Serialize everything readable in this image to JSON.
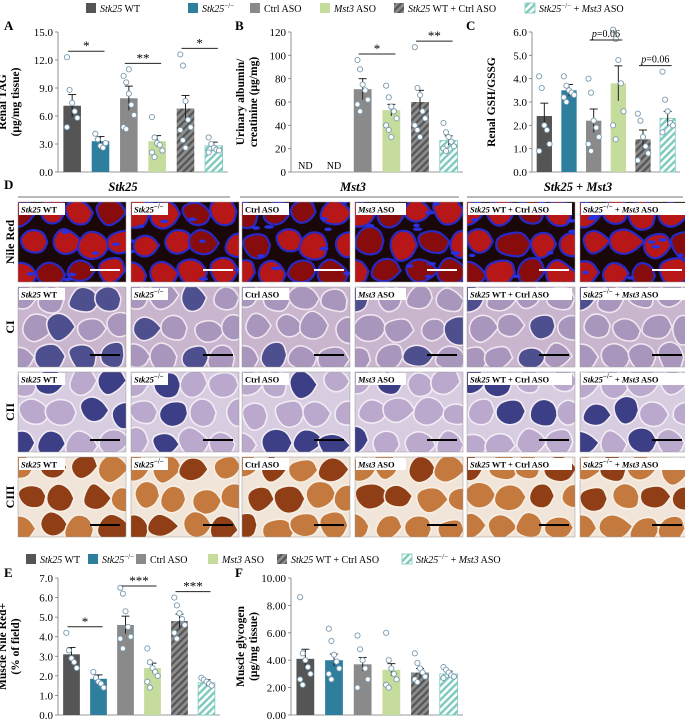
{
  "colors": {
    "stk25_wt": "#555555",
    "stk25_ko": "#2E7F9E",
    "ctrl_aso": "#8A8A8A",
    "mst3_aso": "#C6DC9C",
    "combo_ctrl": "#666666",
    "combo_mst3": "#8FD1C6",
    "nile_red": "#C01818",
    "nile_bg": "#1A0808",
    "ci_bg": "#C9B6CE",
    "ci_fiber_dark": "#4E4F8E",
    "ci_fiber_light": "#A996BC",
    "cii_bg": "#D7CCE0",
    "cii_fiber_dark": "#3C3F86",
    "cii_fiber_light": "#BBA9CD",
    "ciii_bg": "#F0E5D8",
    "ciii_fiber_dark": "#8F3E16",
    "ciii_fiber_light": "#C47A3E"
  },
  "legend_top": {
    "items": [
      {
        "italic": "Stk25",
        "plain": " WT"
      },
      {
        "italic": "Stk25",
        "sup": "−/−",
        "plain": ""
      },
      {
        "italic": "",
        "plain": "Ctrl ASO"
      },
      {
        "italic": "Mst3",
        "plain": " ASO"
      },
      {
        "italic": "Stk25",
        "plain": " WT + Ctrl ASO"
      },
      {
        "italic": "Stk25",
        "sup": "−/−",
        "plain": " + ",
        "italic2": "Mst3",
        "plain2": " ASO"
      }
    ]
  },
  "legend_bottom": {
    "items": [
      {
        "italic": "Stk25",
        "plain": " WT"
      },
      {
        "italic": "Stk25",
        "sup": "−/−",
        "plain": ""
      },
      {
        "italic": "",
        "plain": "Ctrl ASO"
      },
      {
        "italic": "Mst3",
        "plain": " ASO"
      },
      {
        "italic": "Stk25",
        "plain": " WT + Ctrl ASO"
      },
      {
        "italic": "Stk25",
        "sup": "−/−",
        "plain": " + ",
        "italic2": "Mst3",
        "plain2": " ASO"
      }
    ]
  },
  "chart_data": [
    {
      "panel": "A",
      "type": "bar",
      "ylabel_line1": "Renal TAG",
      "ylabel_line2": "(μg/mg tissue)",
      "ylim": [
        0,
        15
      ],
      "yticks": [
        "0.0",
        "3.0",
        "6.0",
        "9.0",
        "12.0",
        "15.0"
      ],
      "values": [
        7.1,
        3.3,
        7.9,
        3.3,
        6.8,
        2.8
      ],
      "errors": [
        1.2,
        0.5,
        1.3,
        0.6,
        1.4,
        0.4
      ],
      "points": [
        [
          12.3,
          8.8,
          7.4,
          6.5,
          5.8,
          4.8
        ],
        [
          4.1,
          3.5,
          2.8,
          2.6,
          3.1
        ],
        [
          10.3,
          9.6,
          8.4,
          7.2,
          6.1,
          4.8,
          4.6,
          11.0
        ],
        [
          5.9,
          3.7,
          3.1,
          2.9,
          2.3,
          2.1,
          1.6
        ],
        [
          12.6,
          11.4,
          7.6,
          5.6,
          4.8,
          4.5,
          3.4,
          2.6
        ],
        [
          3.7,
          3.0,
          2.6,
          2.4,
          2.3,
          2.1
        ]
      ],
      "sig": [
        {
          "from": 0,
          "to": 1,
          "label": "*"
        },
        {
          "from": 2,
          "to": 3,
          "label": "**"
        },
        {
          "from": 4,
          "to": 5,
          "label": "*"
        }
      ]
    },
    {
      "panel": "B",
      "type": "bar",
      "ylabel_line1": "Urinary albumin/",
      "ylabel_line2": "creatinine (μg/mg)",
      "ylim": [
        0,
        120
      ],
      "yticks": [
        "0",
        "20",
        "40",
        "60",
        "80",
        "100",
        "120"
      ],
      "values": [
        null,
        null,
        71,
        53,
        60,
        27
      ],
      "errors": [
        0,
        0,
        9,
        5,
        10,
        4
      ],
      "nd_labels": [
        "ND",
        "ND"
      ],
      "points": [
        [],
        [],
        [
          96,
          88,
          75,
          70,
          62,
          58,
          52
        ],
        [
          74,
          64,
          56,
          52,
          46,
          40,
          36,
          30
        ],
        [
          107,
          72,
          66,
          52,
          46,
          40,
          36,
          30
        ],
        [
          42,
          34,
          30,
          26,
          22,
          20,
          18
        ]
      ],
      "sig": [
        {
          "from": 2,
          "to": 3,
          "label": "*"
        },
        {
          "from": 4,
          "to": 5,
          "label": "**"
        }
      ]
    },
    {
      "panel": "C",
      "type": "bar",
      "ylabel": "Renal GSH/GSSG",
      "ylim": [
        0,
        6
      ],
      "yticks": [
        "0.0",
        "1.0",
        "2.0",
        "3.0",
        "4.0",
        "5.0",
        "6.0"
      ],
      "values": [
        2.4,
        3.5,
        2.2,
        3.8,
        1.4,
        2.3
      ],
      "errors": [
        0.55,
        0.25,
        0.5,
        0.75,
        0.4,
        0.3
      ],
      "points": [
        [
          4.1,
          3.6,
          2.0,
          1.8,
          1.2,
          0.9
        ],
        [
          4.1,
          3.7,
          3.5,
          3.4,
          3.3,
          3.2,
          3.0
        ],
        [
          4.0,
          3.4,
          2.2,
          1.9,
          1.5,
          1.2,
          0.9
        ],
        [
          6.1,
          5.7,
          4.8,
          3.8,
          2.6,
          2.0,
          1.4
        ],
        [
          2.5,
          2.2,
          1.5,
          1.1,
          0.8,
          0.5
        ],
        [
          4.3,
          3.1,
          2.6,
          2.1,
          2.0,
          1.7
        ]
      ],
      "sig": [
        {
          "from": 2,
          "to": 3,
          "label": "p=0.06"
        },
        {
          "from": 4,
          "to": 5,
          "label": "p=0.06"
        }
      ]
    },
    {
      "panel": "E",
      "type": "bar",
      "ylabel_line1": "Muscle Nile Red+",
      "ylabel_line2": "(% of field)",
      "ylim": [
        0,
        7
      ],
      "yticks": [
        "0.0",
        "1.0",
        "2.0",
        "3.0",
        "4.0",
        "5.0",
        "6.0",
        "7.0"
      ],
      "values": [
        3.1,
        1.85,
        4.6,
        2.4,
        4.8,
        1.65
      ],
      "errors": [
        0.35,
        0.2,
        0.45,
        0.25,
        0.35,
        0.15
      ],
      "points": [
        [
          4.2,
          3.3,
          2.9,
          2.7,
          2.4
        ],
        [
          2.2,
          1.9,
          1.7,
          1.6,
          1.4
        ],
        [
          6.5,
          6.2,
          5.3,
          4.5,
          4.0,
          3.9,
          3.4
        ],
        [
          3.4,
          2.7,
          2.4,
          2.2,
          2.0,
          1.7,
          1.4
        ],
        [
          6.0,
          5.6,
          5.2,
          4.9,
          4.6,
          4.2,
          3.9
        ],
        [
          1.9,
          1.8,
          1.7,
          1.6,
          1.5
        ]
      ],
      "sig": [
        {
          "from": 0,
          "to": 1,
          "label": "*"
        },
        {
          "from": 2,
          "to": 3,
          "label": "***"
        },
        {
          "from": 4,
          "to": 5,
          "label": "***"
        }
      ]
    },
    {
      "panel": "F",
      "type": "bar",
      "ylabel_line1": "Muscle glycogen",
      "ylabel_line2": "(μg/mg tissue)",
      "ylim": [
        0,
        10
      ],
      "yticks": [
        "0.00",
        "2.00",
        "4.00",
        "6.00",
        "8.00",
        "10.00"
      ],
      "values": [
        4.1,
        4.0,
        3.7,
        3.3,
        3.1,
        3.0
      ],
      "errors": [
        0.7,
        0.45,
        0.5,
        0.45,
        0.3,
        0.2
      ],
      "points": [
        [
          8.6,
          4.5,
          4.0,
          3.5,
          3.0,
          2.6,
          2.2
        ],
        [
          6.3,
          5.4,
          4.4,
          3.9,
          3.4,
          3.0,
          2.6
        ],
        [
          5.8,
          4.8,
          4.0,
          3.4,
          2.6,
          2.0
        ],
        [
          6.0,
          4.0,
          3.4,
          3.0,
          2.6,
          2.2,
          2.0
        ],
        [
          4.5,
          3.8,
          3.4,
          3.1,
          2.8,
          2.6,
          2.4
        ],
        [
          3.5,
          3.3,
          3.1,
          2.9,
          2.8,
          2.7
        ]
      ],
      "sig": []
    }
  ],
  "panel_letters": [
    "A",
    "B",
    "C",
    "D",
    "E",
    "F"
  ],
  "group_headers": [
    "Stk25",
    "Mst3",
    "Stk25 + Mst3"
  ],
  "row_labels": [
    "Nile Red",
    "CI",
    "CII",
    "CIII"
  ],
  "micro_labels": [
    {
      "italic": "Stk25",
      "plain": " WT"
    },
    {
      "italic": "Stk25",
      "sup": "−/−",
      "plain": ""
    },
    {
      "italic": "",
      "plain": "Ctrl ASO"
    },
    {
      "italic": "Mst3",
      "plain": " ASO"
    },
    {
      "italic": "Stk25",
      "plain": " WT + Ctrl ASO"
    },
    {
      "italic": "Stk25",
      "sup": "−/−",
      "plain": " + ",
      "italic2": "Mst3",
      "plain2": " ASO"
    }
  ]
}
